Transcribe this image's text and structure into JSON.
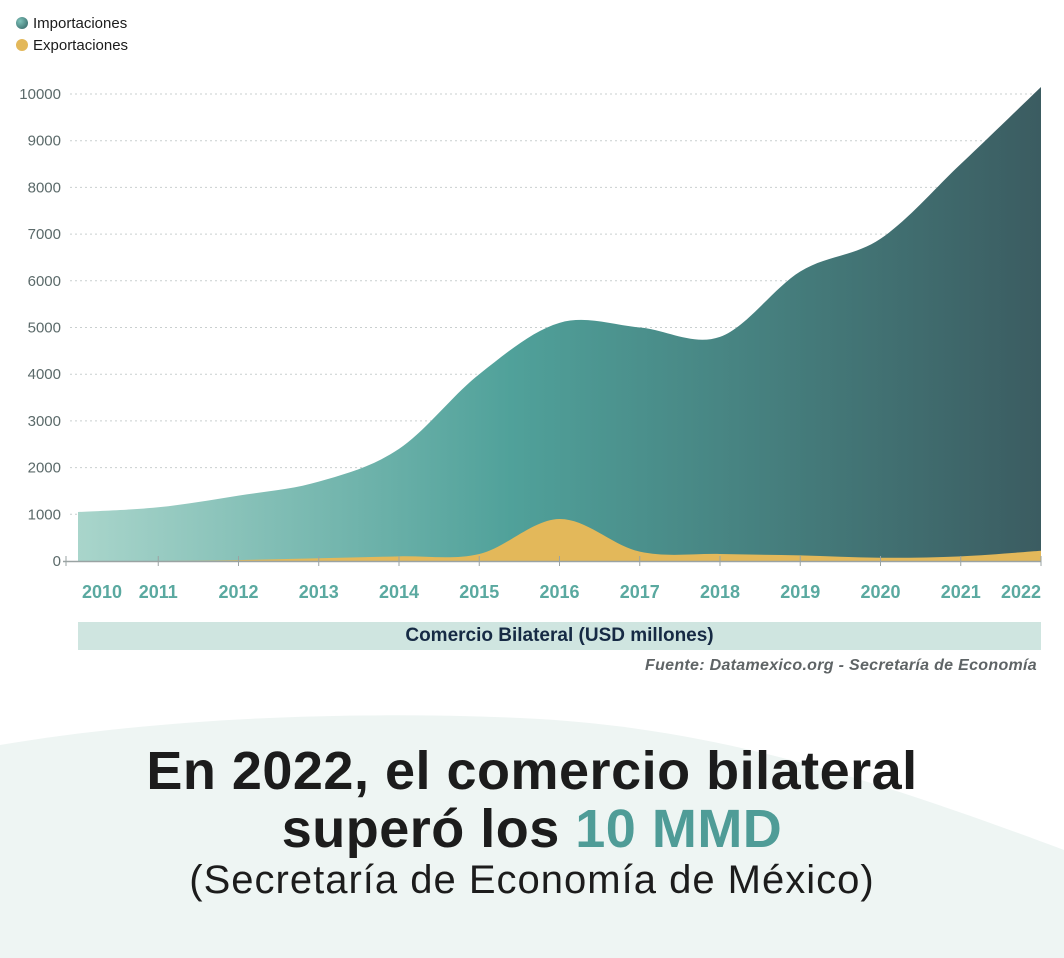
{
  "legend": [
    {
      "label": "Importaciones",
      "color": "#4a9a95"
    },
    {
      "label": "Exportaciones",
      "color": "#e3b85a"
    }
  ],
  "banner_label": "Comercio Bilateral (USD millones)",
  "source": "Fuente: Datamexico.org - Secretaría de Economía",
  "headline": {
    "line1": "En 2022, el comercio bilateral",
    "line2_prefix": "superó los ",
    "line2_accent": "10 MMD",
    "subtitle": "(Secretaría de Economía de México)"
  },
  "chart_data": {
    "type": "area",
    "x": [
      "2010",
      "2011",
      "2012",
      "2013",
      "2014",
      "2015",
      "2016",
      "2017",
      "2018",
      "2019",
      "2020",
      "2021",
      "2022"
    ],
    "series": [
      {
        "name": "Importaciones",
        "values": [
          1050,
          1150,
          1400,
          1700,
          2400,
          4000,
          5100,
          5000,
          4800,
          6200,
          6900,
          8500,
          10150
        ]
      },
      {
        "name": "Exportaciones",
        "values": [
          0,
          0,
          20,
          60,
          100,
          150,
          900,
          200,
          150,
          120,
          70,
          100,
          220
        ]
      }
    ],
    "yticks": [
      0,
      1000,
      2000,
      3000,
      4000,
      5000,
      6000,
      7000,
      8000,
      9000,
      10000
    ],
    "ylim": [
      0,
      10000
    ],
    "grid": true,
    "colors": {
      "imports_start": "#a9d5cb",
      "imports_mid": "#4f9e98",
      "imports_end": "#3b5c61",
      "exports": "#e3b85a"
    }
  }
}
